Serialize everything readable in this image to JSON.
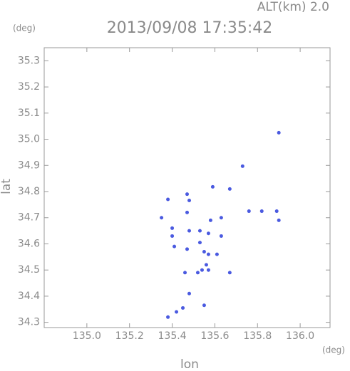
{
  "chart_data": {
    "type": "scatter",
    "title": "2013/09/08 17:35:42",
    "subtitle": "ALT(km) 2.0",
    "x_label": "lon",
    "y_label": "lat",
    "x_unit": "(deg)",
    "y_unit": "(deg)",
    "x": [
      135.9,
      135.73,
      135.59,
      135.67,
      135.47,
      135.48,
      135.38,
      135.47,
      135.35,
      135.76,
      135.82,
      135.89,
      135.9,
      135.63,
      135.58,
      135.4,
      135.4,
      135.48,
      135.53,
      135.57,
      135.63,
      135.41,
      135.47,
      135.53,
      135.55,
      135.57,
      135.61,
      135.56,
      135.54,
      135.57,
      135.46,
      135.52,
      135.67,
      135.48,
      135.55,
      135.45,
      135.42,
      135.38
    ],
    "y": [
      35.025,
      34.897,
      34.818,
      34.81,
      34.79,
      34.766,
      34.77,
      34.72,
      34.7,
      34.725,
      34.725,
      34.725,
      34.69,
      34.7,
      34.69,
      34.66,
      34.63,
      34.65,
      34.65,
      34.64,
      34.63,
      34.59,
      34.58,
      34.605,
      34.57,
      34.56,
      34.56,
      34.52,
      34.5,
      34.5,
      34.49,
      34.49,
      34.49,
      34.41,
      34.365,
      34.355,
      34.34,
      34.32
    ],
    "color": "#4a5ae0",
    "xlim": [
      134.8,
      136.14
    ],
    "ylim": [
      34.28,
      35.35
    ],
    "xticks": [
      {
        "value": 135.0,
        "label": "135.0"
      },
      135.2,
      135.4,
      135.6,
      135.8,
      {
        "value": 136.0,
        "label": "136.0"
      }
    ],
    "yticks": [
      34.3,
      34.4,
      34.5,
      34.6,
      34.7,
      34.8,
      34.9,
      {
        "value": 35.0,
        "label": "35.0"
      },
      35.1,
      35.2,
      35.3
    ]
  }
}
